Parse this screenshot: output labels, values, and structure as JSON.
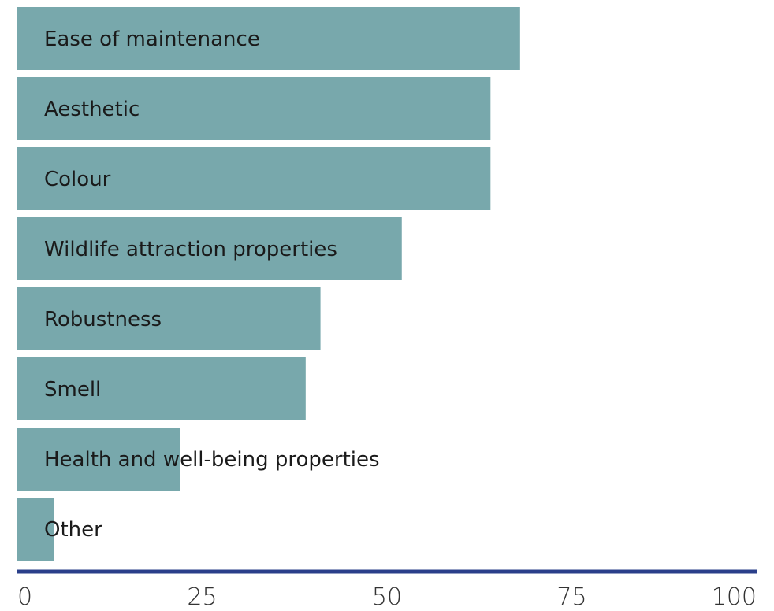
{
  "chart_data": {
    "type": "bar",
    "orientation": "horizontal",
    "categories": [
      "Ease of maintenance",
      "Aesthetic",
      "Colour",
      "Wildlife attraction properties",
      "Robustness",
      "Smell",
      "Health and well-being properties",
      "Other"
    ],
    "values": [
      68,
      64,
      64,
      52,
      41,
      39,
      22,
      5
    ],
    "xlim": [
      0,
      100
    ],
    "xticks": [
      "0",
      "25",
      "50",
      "75",
      "100"
    ],
    "title": "",
    "xlabel": "",
    "ylabel": "",
    "grid": false,
    "legend": "none",
    "colors": {
      "bar": "#78a8ac",
      "axis": "#2a3f8a"
    }
  }
}
